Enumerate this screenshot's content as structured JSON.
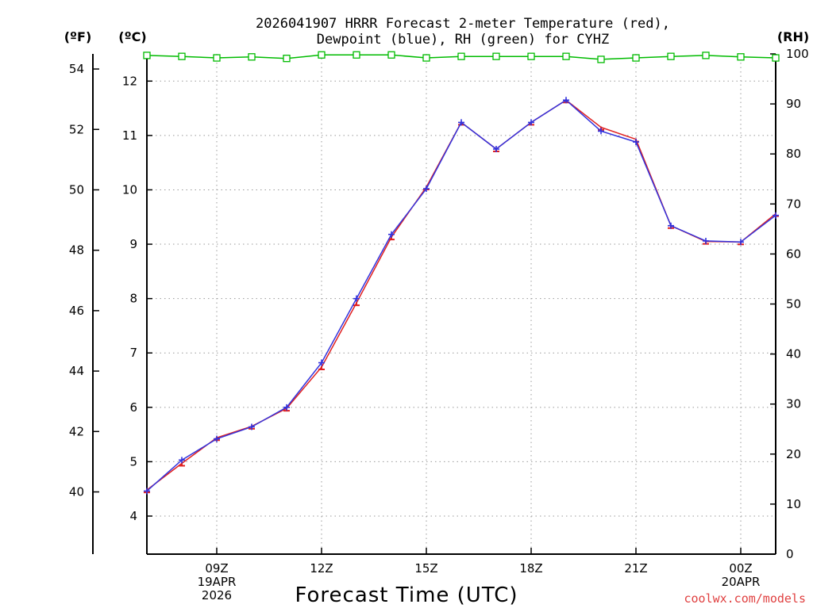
{
  "title_lines": [
    "2026041907 HRRR Forecast 2-meter Temperature (red),",
    "Dewpoint (blue), RH (green) for CYHZ"
  ],
  "units": {
    "fahrenheit": "(ºF)",
    "celsius": "(ºC)",
    "rh": "(RH)"
  },
  "colors": {
    "temperature": "#e02020",
    "dewpoint": "#3333dd",
    "rh": "#00bb00",
    "grid": "#999999",
    "credit": "#e04040"
  },
  "credit": "coolwx.com/models",
  "chart_data": {
    "type": "line",
    "title": "2026041907 HRRR Forecast 2-meter Temperature (red), Dewpoint (blue), RH (green) for CYHZ",
    "xlabel": "Forecast Time (UTC)",
    "x_hours_utc": [
      7,
      8,
      9,
      10,
      11,
      12,
      13,
      14,
      15,
      16,
      17,
      18,
      19,
      20,
      21,
      22,
      23,
      0,
      1
    ],
    "x_range": [
      7,
      25
    ],
    "x_ticks": [
      {
        "hour": 9,
        "label": "09Z",
        "sub": [
          "19APR",
          "2026"
        ]
      },
      {
        "hour": 12,
        "label": "12Z",
        "sub": []
      },
      {
        "hour": 15,
        "label": "15Z",
        "sub": []
      },
      {
        "hour": 18,
        "label": "18Z",
        "sub": []
      },
      {
        "hour": 21,
        "label": "21Z",
        "sub": []
      },
      {
        "hour": 24,
        "label": "00Z",
        "sub": [
          "20APR"
        ]
      }
    ],
    "y_celsius": {
      "label": "(ºC)",
      "range": [
        3.3,
        12.5
      ],
      "ticks": [
        "4",
        "5",
        "6",
        "7",
        "8",
        "9",
        "10",
        "11",
        "12"
      ]
    },
    "y_fahrenheit": {
      "label": "(ºF)",
      "range": [
        37.94,
        54.5
      ],
      "ticks": [
        "40",
        "42",
        "44",
        "46",
        "48",
        "50",
        "52",
        "54"
      ]
    },
    "y_rh": {
      "label": "(RH)",
      "range": [
        0,
        100
      ],
      "ticks": [
        "0",
        "10",
        "20",
        "30",
        "40",
        "50",
        "60",
        "70",
        "80",
        "90",
        "100"
      ]
    },
    "series": [
      {
        "name": "Temperature",
        "unit": "C",
        "values": [
          4.48,
          4.97,
          5.44,
          5.65,
          5.98,
          6.74,
          7.92,
          9.13,
          10.05,
          11.24,
          10.75,
          11.24,
          11.65,
          11.15,
          10.93,
          9.34,
          9.05,
          9.04,
          9.56
        ]
      },
      {
        "name": "Dewpoint",
        "unit": "C",
        "values": [
          4.46,
          5.03,
          5.42,
          5.64,
          6.0,
          6.82,
          8.0,
          9.18,
          10.02,
          11.24,
          10.75,
          11.24,
          11.65,
          11.08,
          10.88,
          9.34,
          9.06,
          9.04,
          9.53
        ]
      },
      {
        "name": "Relative Humidity",
        "unit": "%",
        "values": [
          99.7,
          99.5,
          99.2,
          99.4,
          99.1,
          99.8,
          99.8,
          99.8,
          99.2,
          99.5,
          99.5,
          99.5,
          99.5,
          98.9,
          99.2,
          99.5,
          99.7,
          99.4,
          99.2
        ]
      }
    ]
  }
}
